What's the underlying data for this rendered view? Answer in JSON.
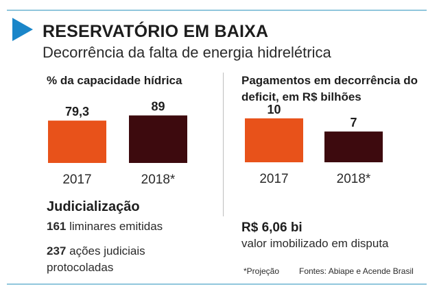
{
  "header": {
    "title": "RESERVATÓRIO EM BAIXA",
    "subtitle": "Decorrência da falta de energia hidrelétrica"
  },
  "colors": {
    "accent": "#1a86c9",
    "bar_2017": "#e8521a",
    "bar_2018": "#3d0a0e",
    "rule": "#8fc6dc"
  },
  "chart_data": [
    {
      "type": "bar",
      "title": "% da capacidade hídrica",
      "categories": [
        "2017",
        "2018*"
      ],
      "values": [
        79.3,
        89
      ],
      "labels": [
        "79,3",
        "89"
      ],
      "ylim": [
        0,
        100
      ]
    },
    {
      "type": "bar",
      "title": "Pagamentos em decorrência do deficit, em R$ bilhões",
      "categories": [
        "2017",
        "2018*"
      ],
      "values": [
        10,
        7
      ],
      "labels": [
        "10",
        "7"
      ],
      "ylim": [
        0,
        12
      ]
    }
  ],
  "judicial": {
    "title": "Judicialização",
    "liminares_count": "161",
    "liminares_text": "liminares emitidas",
    "acoes_count": "237",
    "acoes_text": "ações judiciais protocoladas"
  },
  "disputa": {
    "value": "R$ 6,06 bi",
    "text": "valor imobilizado em disputa"
  },
  "footer": {
    "note": "*Projeção",
    "sources": "Fontes: Abiape e Acende Brasil"
  }
}
